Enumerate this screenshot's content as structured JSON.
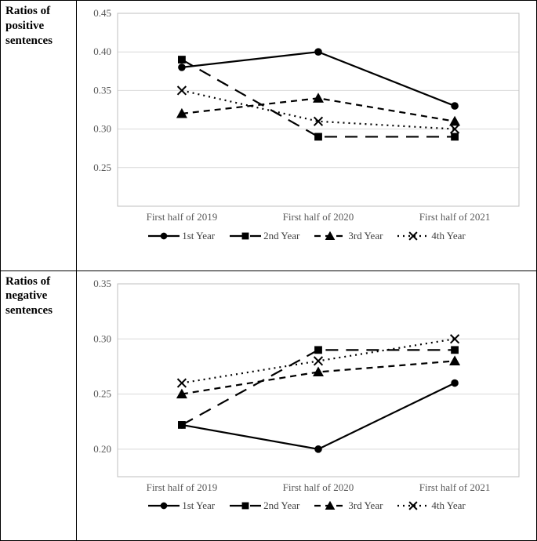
{
  "charts": [
    {
      "id": "positive",
      "title_lines": [
        "Ratios of",
        "positive",
        "sentences"
      ],
      "type": "line",
      "categories": [
        "First half of 2019",
        "First half of 2020",
        "First half of 2021"
      ],
      "ylim": [
        0.2,
        0.45
      ],
      "ytick_step": 0.05,
      "yticks": [
        0.25,
        0.3,
        0.35,
        0.4,
        0.45
      ],
      "grid_color": "#d9d9d9",
      "border_color": "#bfbfbf",
      "background_color": "#ffffff",
      "tick_label_color": "#595959",
      "tick_fontsize": 13,
      "series": [
        {
          "name": "1st Year",
          "values": [
            0.38,
            0.4,
            0.33
          ],
          "color": "#000000",
          "line_width": 2.2,
          "dash": "solid",
          "marker": "circle",
          "marker_size": 6
        },
        {
          "name": "2nd Year",
          "values": [
            0.39,
            0.29,
            0.29
          ],
          "color": "#000000",
          "line_width": 2.2,
          "dash": "long-dash",
          "marker": "square",
          "marker_size": 7
        },
        {
          "name": "3rd Year",
          "values": [
            0.32,
            0.34,
            0.31
          ],
          "color": "#000000",
          "line_width": 2.2,
          "dash": "short-dash",
          "marker": "triangle",
          "marker_size": 7
        },
        {
          "name": "4th Year",
          "values": [
            0.35,
            0.31,
            0.3
          ],
          "color": "#000000",
          "line_width": 2.2,
          "dash": "dot",
          "marker": "x",
          "marker_size": 6
        }
      ]
    },
    {
      "id": "negative",
      "title_lines": [
        "Ratios of",
        "negative",
        "sentences"
      ],
      "type": "line",
      "categories": [
        "First half of 2019",
        "First half of 2020",
        "First half of 2021"
      ],
      "ylim": [
        0.175,
        0.35
      ],
      "ytick_step": 0.05,
      "yticks": [
        0.2,
        0.25,
        0.3,
        0.35
      ],
      "grid_color": "#d9d9d9",
      "border_color": "#bfbfbf",
      "background_color": "#ffffff",
      "tick_label_color": "#595959",
      "tick_fontsize": 13,
      "series": [
        {
          "name": "1st Year",
          "values": [
            0.222,
            0.2,
            0.26
          ],
          "color": "#000000",
          "line_width": 2.2,
          "dash": "solid",
          "marker": "circle",
          "marker_size": 6
        },
        {
          "name": "2nd Year",
          "values": [
            0.222,
            0.29,
            0.29
          ],
          "color": "#000000",
          "line_width": 2.2,
          "dash": "long-dash",
          "marker": "square",
          "marker_size": 7
        },
        {
          "name": "3rd Year",
          "values": [
            0.25,
            0.27,
            0.28
          ],
          "color": "#000000",
          "line_width": 2.2,
          "dash": "short-dash",
          "marker": "triangle",
          "marker_size": 7
        },
        {
          "name": "4th Year",
          "values": [
            0.26,
            0.28,
            0.3
          ],
          "color": "#000000",
          "line_width": 2.2,
          "dash": "dot",
          "marker": "x",
          "marker_size": 6
        }
      ]
    }
  ],
  "dash_patterns": {
    "solid": "",
    "long-dash": "16 10",
    "short-dash": "8 6",
    "dot": "2 5"
  },
  "legend_labels": [
    "1st Year",
    "2nd Year",
    "3rd Year",
    "4th Year"
  ]
}
